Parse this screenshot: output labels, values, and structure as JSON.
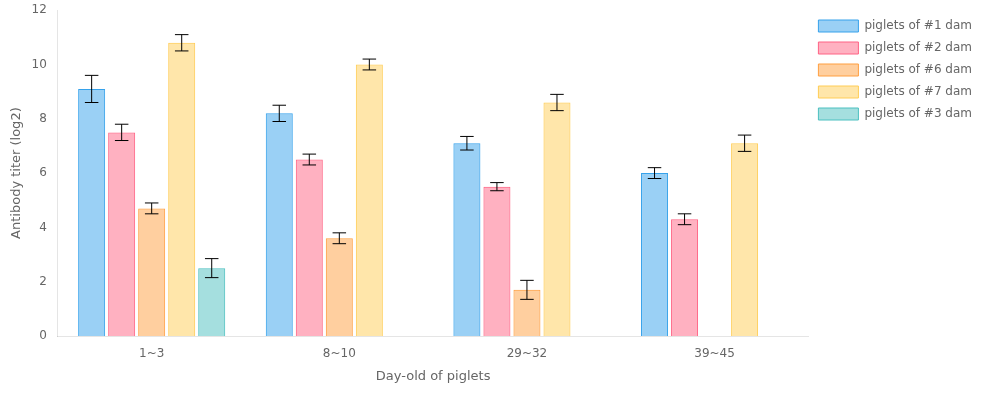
{
  "chart_data": {
    "type": "bar",
    "xlabel": "Day-old of piglets",
    "ylabel": "Antibody titer (log2)",
    "categories": [
      "1~3",
      "8~10",
      "29~32",
      "39~45"
    ],
    "series": [
      {
        "name": "piglets of #1 dam",
        "values": [
          9.1,
          8.2,
          7.1,
          6.0
        ],
        "errors": [
          0.5,
          0.3,
          0.25,
          0.2
        ]
      },
      {
        "name": "piglets of #2 dam",
        "values": [
          7.5,
          6.5,
          5.5,
          4.3
        ],
        "errors": [
          0.3,
          0.2,
          0.15,
          0.2
        ]
      },
      {
        "name": "piglets of #6 dam",
        "values": [
          4.7,
          3.6,
          1.7,
          null
        ],
        "errors": [
          0.2,
          0.2,
          0.35,
          null
        ]
      },
      {
        "name": "piglets of #7 dam",
        "values": [
          10.8,
          10.0,
          8.6,
          7.1
        ],
        "errors": [
          0.3,
          0.2,
          0.3,
          0.3
        ]
      },
      {
        "name": "piglets of #3 dam",
        "values": [
          2.5,
          null,
          null,
          null
        ],
        "errors": [
          0.35,
          null,
          null,
          null
        ]
      }
    ],
    "ylim": [
      0,
      12
    ],
    "yticks": [
      0,
      2,
      4,
      6,
      8,
      10,
      12
    ],
    "grid": false,
    "legend": "right"
  }
}
